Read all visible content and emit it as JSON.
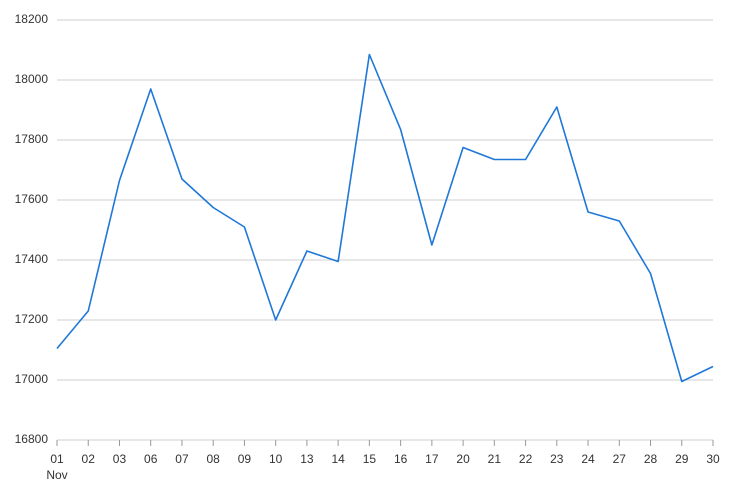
{
  "chart_data": {
    "type": "line",
    "categories": [
      "01",
      "02",
      "03",
      "06",
      "07",
      "08",
      "09",
      "10",
      "13",
      "14",
      "15",
      "16",
      "17",
      "20",
      "21",
      "22",
      "23",
      "24",
      "27",
      "28",
      "29",
      "30"
    ],
    "month": "Nov",
    "series": [
      {
        "color": "#1f78d8",
        "values": [
          17105,
          17230,
          17665,
          17970,
          17670,
          17575,
          17510,
          17200,
          17430,
          17395,
          18085,
          17835,
          17450,
          17775,
          17735,
          17735,
          17910,
          17560,
          17530,
          17355,
          16995,
          17045
        ]
      }
    ],
    "ylim": [
      16800,
      18200
    ],
    "yticks": [
      16800,
      17000,
      17200,
      17400,
      17600,
      17800,
      18000,
      18200
    ],
    "grid": true
  }
}
